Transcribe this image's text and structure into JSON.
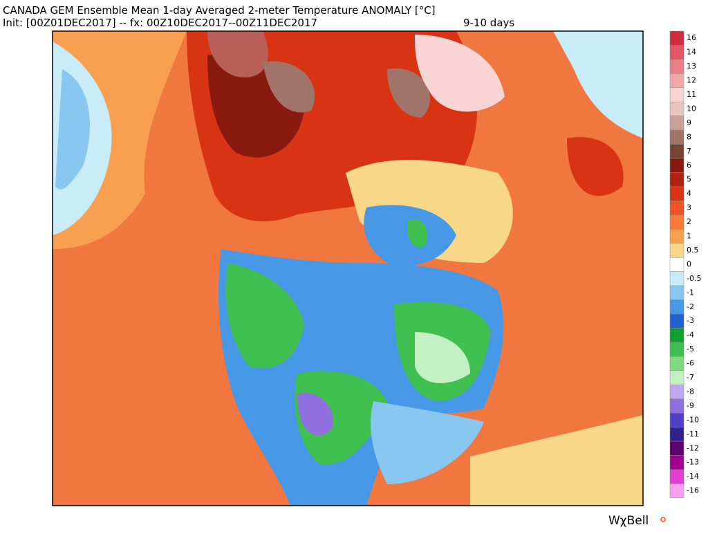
{
  "header": {
    "title": "CANADA GEM Ensemble Mean 1-day Averaged 2-meter Temperature ANOMALY [°C]",
    "init": "Init: [00Z01DEC2017] -- fx: 00Z10DEC2017--00Z11DEC2017",
    "lead": "9-10 days"
  },
  "colorbar": {
    "values": [
      16,
      14,
      13,
      12,
      11,
      10,
      9,
      8,
      7,
      6,
      5,
      4,
      3,
      2,
      1,
      0.5,
      0,
      -0.5,
      -1,
      -2,
      -3,
      -4,
      -5,
      -6,
      -7,
      -8,
      -9,
      -10,
      -11,
      -12,
      -13,
      -14,
      -16
    ],
    "colors": [
      "#d02c40",
      "#e05868",
      "#ea7e88",
      "#f2a8a8",
      "#f8d4d4",
      "#e6c6be",
      "#c8a098",
      "#a07468",
      "#784434",
      "#8a1a10",
      "#b02210",
      "#d83414",
      "#f05424",
      "#f87a3a",
      "#f8a050",
      "#f8d888",
      "#ffffff",
      "#c8ecf8",
      "#88c8f0",
      "#4898e8",
      "#2060d0",
      "#10a030",
      "#40c050",
      "#80d880",
      "#c4f0c4",
      "#c0a8f0",
      "#9070e0",
      "#5040c8",
      "#302090",
      "#600070",
      "#a00090",
      "#e040d0",
      "#f8a0f0"
    ]
  },
  "logo": "WχBell"
}
